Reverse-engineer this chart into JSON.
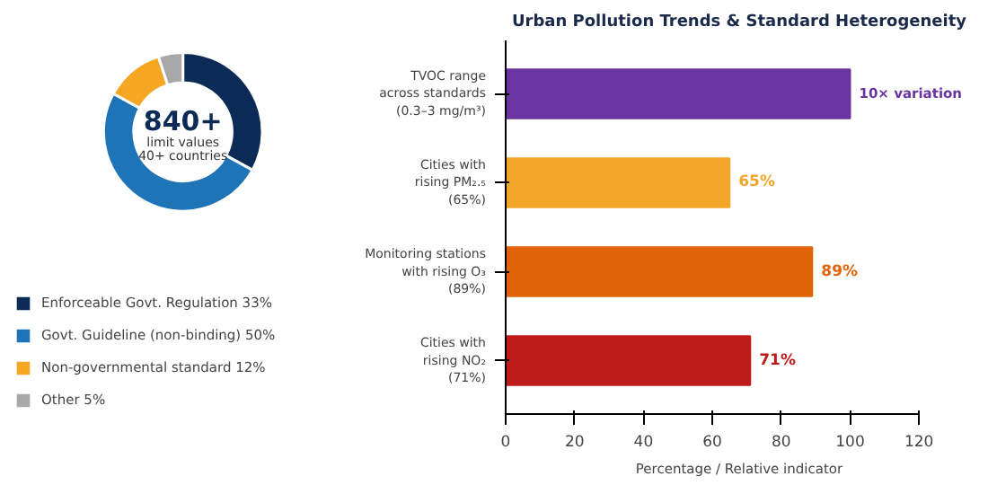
{
  "chart_data": [
    {
      "type": "donut",
      "categories": [
        "Enforceable Govt. Regulation 33%",
        "Govt. Guideline (non-binding) 50%",
        "Non-governmental standard 12%",
        "Other 5%"
      ],
      "values": [
        33,
        50,
        12,
        5
      ],
      "colors": [
        "#0b2a55",
        "#1f73b7",
        "#f5a623",
        "#a8a8a8"
      ],
      "legend": "bottom",
      "annotations": [
        "840+",
        "limit values",
        "40+ countries"
      ]
    },
    {
      "type": "bar",
      "orientation": "horizontal",
      "title": "Urban Pollution Trends & Standard Heterogeneity",
      "xlabel": "Percentage / Relative indicator",
      "categories": [
        "TVOC range\nacross standards\n(0.3–3 mg/m³)",
        "Cities with\nrising PM₂.₅\n(65%)",
        "Monitoring stations\nwith rising O₃\n(89%)",
        "Cities with\nrising NO₂\n(71%)"
      ],
      "values": [
        100,
        65,
        89,
        71
      ],
      "colors": [
        "#6a35a0",
        "#f2a72a",
        "#e2640a",
        "#bf1b1b"
      ],
      "value_labels": [
        null,
        "65%",
        "89%",
        "71%"
      ],
      "annotations": [
        {
          "text": "10× variation",
          "x": 100,
          "y": "TVOC range\nacross standards\n(0.3–3 mg/m³)"
        }
      ],
      "xlim": [
        0,
        120
      ],
      "xticks": [
        0,
        20,
        40,
        60,
        80,
        100,
        120
      ],
      "grid": false
    }
  ]
}
